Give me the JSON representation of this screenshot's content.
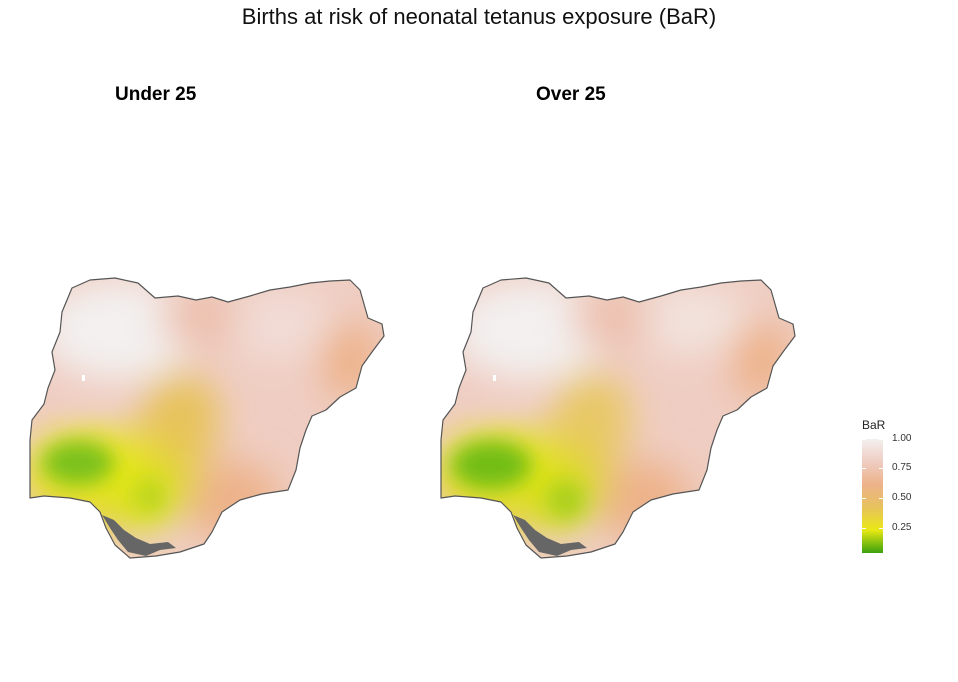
{
  "title": "Births at risk of neonatal tetanus exposure (BaR)",
  "panels": [
    {
      "title": "Under 25"
    },
    {
      "title": "Over 25"
    }
  ],
  "legend": {
    "title": "BaR",
    "ticks": [
      "1.00",
      "0.75",
      "0.50",
      "0.25"
    ],
    "tick_values": [
      1.0,
      0.75,
      0.5,
      0.25
    ],
    "range": [
      0.0,
      1.0
    ],
    "colors": [
      "#3aa10d",
      "#e8e814",
      "#e7c25c",
      "#edb28a",
      "#efcdc2",
      "#f3f0ef"
    ]
  },
  "colors": {
    "high_risk": "#f3f0ef",
    "mid_high": "#efcdc2",
    "mid": "#edb28a",
    "mid_low": "#e7c25c",
    "low": "#e8e814",
    "lowest": "#3aa10d",
    "border": "#555555"
  }
}
